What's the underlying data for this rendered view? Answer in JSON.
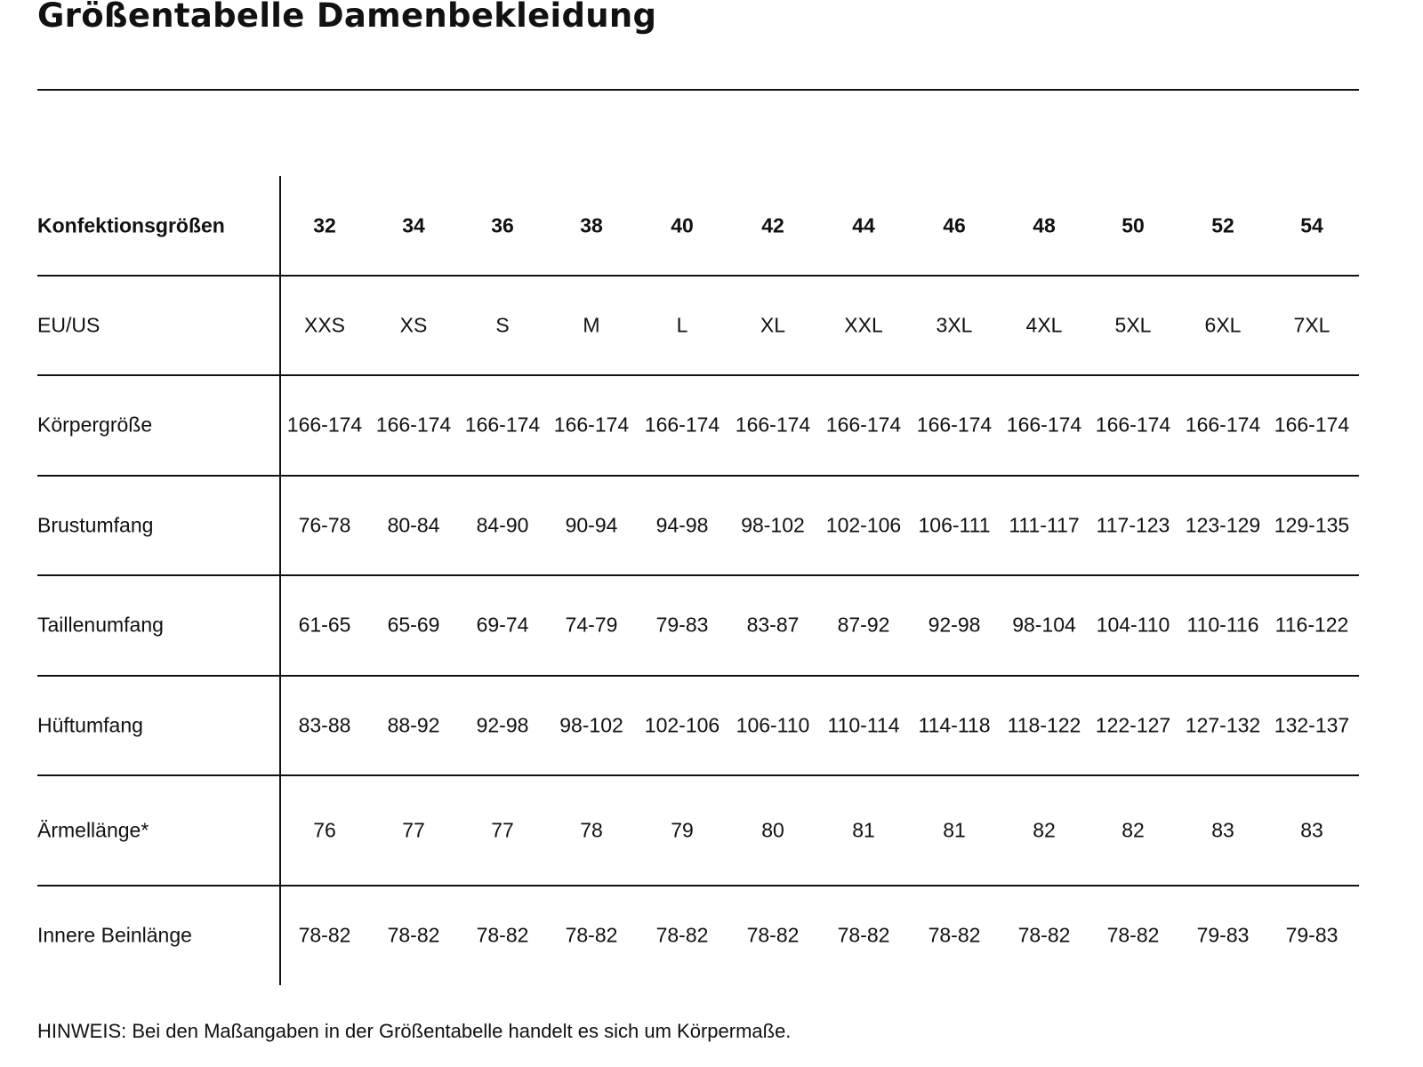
{
  "title": "Größentabelle Damenbekleidung",
  "table": {
    "header": {
      "label": "Konfektionsgrößen",
      "values": [
        "32",
        "34",
        "36",
        "38",
        "40",
        "42",
        "44",
        "46",
        "48",
        "50",
        "52",
        "54"
      ]
    },
    "rows": [
      {
        "label": "EU/US",
        "values": [
          "XXS",
          "XS",
          "S",
          "M",
          "L",
          "XL",
          "XXL",
          "3XL",
          "4XL",
          "5XL",
          "6XL",
          "7XL"
        ]
      },
      {
        "label": "Körpergröße",
        "values": [
          "166-174",
          "166-174",
          "166-174",
          "166-174",
          "166-174",
          "166-174",
          "166-174",
          "166-174",
          "166-174",
          "166-174",
          "166-174",
          "166-174"
        ]
      },
      {
        "label": "Brustumfang",
        "values": [
          "76-78",
          "80-84",
          "84-90",
          "90-94",
          "94-98",
          "98-102",
          "102-106",
          "106-111",
          "111-117",
          "117-123",
          "123-129",
          "129-135"
        ]
      },
      {
        "label": "Taillenumfang",
        "values": [
          "61-65",
          "65-69",
          "69-74",
          "74-79",
          "79-83",
          "83-87",
          "87-92",
          "92-98",
          "98-104",
          "104-110",
          "110-116",
          "116-122"
        ]
      },
      {
        "label": "Hüftumfang",
        "values": [
          "83-88",
          "88-92",
          "92-98",
          "98-102",
          "102-106",
          "106-110",
          "110-114",
          "114-118",
          "118-122",
          "122-127",
          "127-132",
          "132-137"
        ]
      },
      {
        "label": "Ärmellänge*",
        "values": [
          "76",
          "77",
          "77",
          "78",
          "79",
          "80",
          "81",
          "81",
          "82",
          "82",
          "83",
          "83"
        ]
      },
      {
        "label": "Innere Beinlänge",
        "values": [
          "78-82",
          "78-82",
          "78-82",
          "78-82",
          "78-82",
          "78-82",
          "78-82",
          "78-82",
          "78-82",
          "78-82",
          "79-83",
          "79-83"
        ]
      }
    ]
  },
  "note": "HINWEIS: Bei den Maßangaben in der Größentabelle handelt es sich um Körpermaße."
}
